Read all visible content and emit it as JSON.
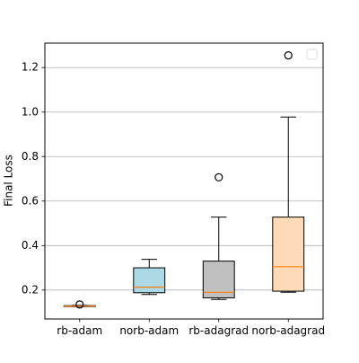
{
  "chart_data": {
    "type": "box",
    "title": "",
    "xlabel": "",
    "ylabel": "Final Loss",
    "ylim": [
      0.07,
      1.31
    ],
    "yticks": [
      0.2,
      0.4,
      0.6,
      0.8,
      1.0,
      1.2
    ],
    "ytick_labels": [
      "0.2",
      "0.4",
      "0.6",
      "0.8",
      "1.0",
      "1.2"
    ],
    "grid": "horizontal",
    "legend_placement": "top-right",
    "categories": [
      "rb-adam",
      "norb-adam",
      "rb-adagrad",
      "norb-adagrad"
    ],
    "boxes": [
      {
        "category": "rb-adam",
        "whisker_low": 0.126,
        "q1": 0.127,
        "median": 0.128,
        "q3": 0.13,
        "whisker_high": 0.131,
        "outliers": [
          0.135
        ],
        "fill": "#ffffff"
      },
      {
        "category": "norb-adam",
        "whisker_low": 0.18,
        "q1": 0.188,
        "median": 0.213,
        "q3": 0.3,
        "whisker_high": 0.338,
        "outliers": [],
        "fill": "#add8e6"
      },
      {
        "category": "rb-adagrad",
        "whisker_low": 0.158,
        "q1": 0.165,
        "median": 0.19,
        "q3": 0.33,
        "whisker_high": 0.528,
        "outliers": [
          0.707
        ],
        "fill": "#c0c0c0"
      },
      {
        "category": "norb-adagrad",
        "whisker_low": 0.19,
        "q1": 0.195,
        "median": 0.305,
        "q3": 0.528,
        "whisker_high": 0.978,
        "outliers": [
          1.255
        ],
        "fill": "#ffdab9"
      }
    ],
    "colors": {
      "median_line": "#ff7f0e",
      "box_edge": "#000000",
      "grid": "#b0b0b0"
    }
  }
}
